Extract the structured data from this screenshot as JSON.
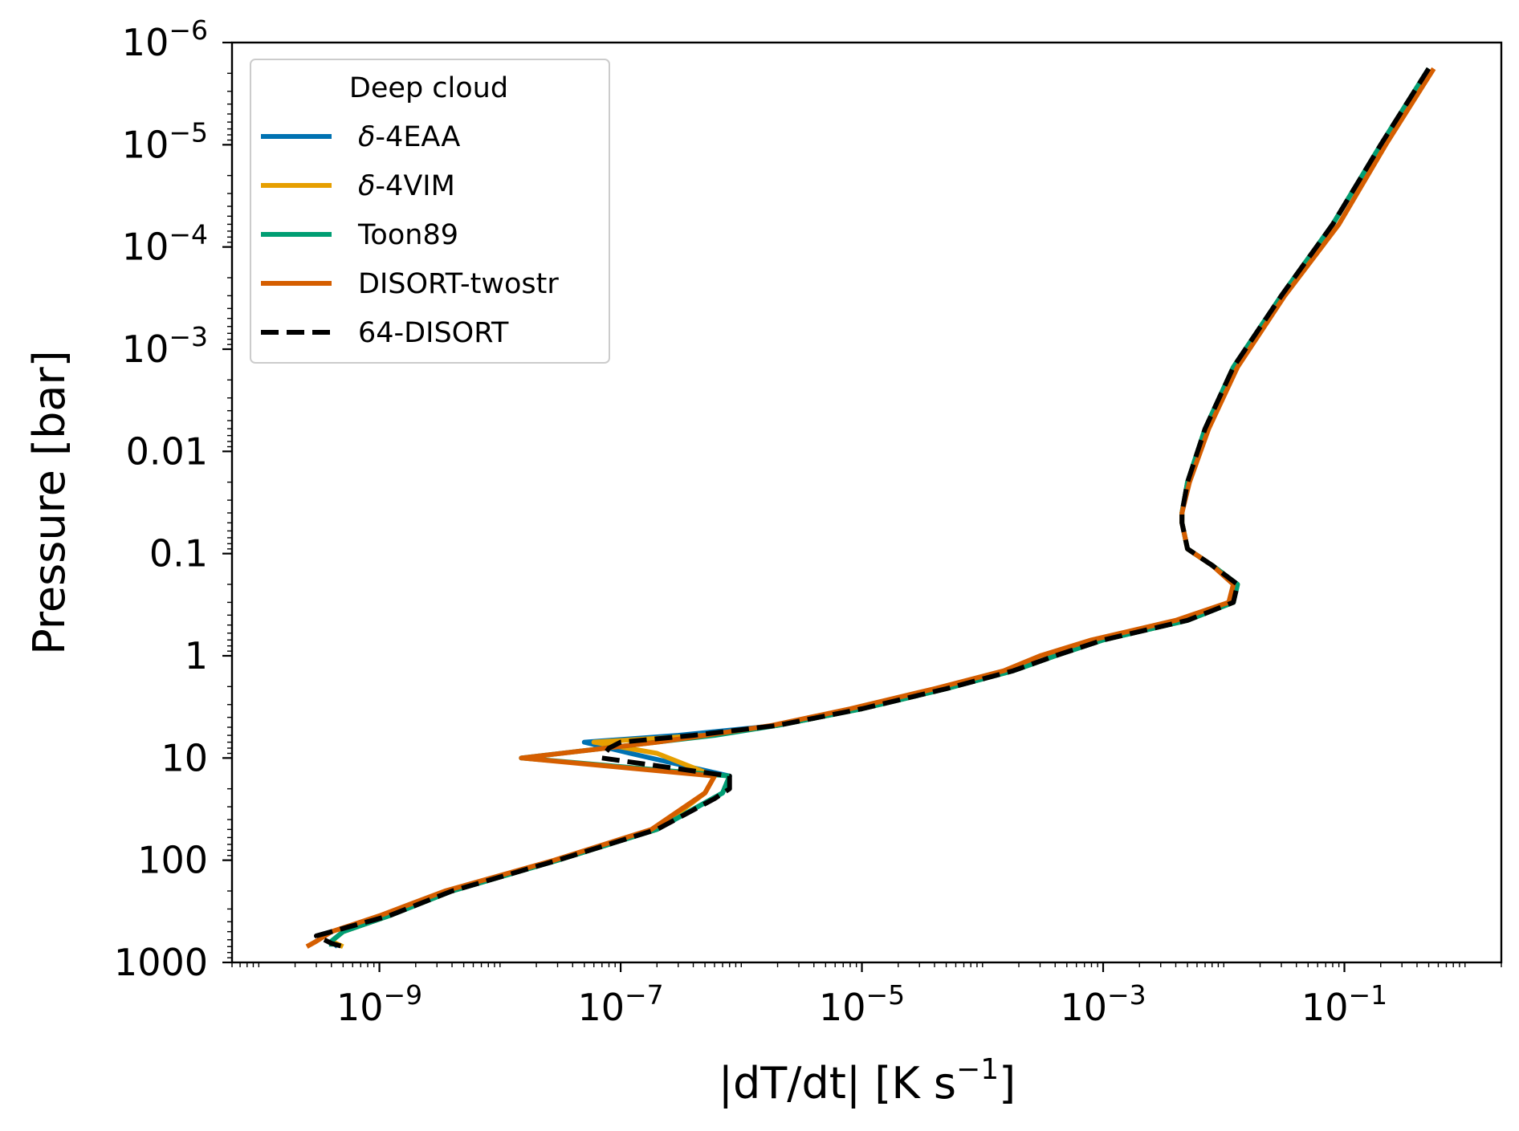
{
  "chart_data": {
    "type": "line",
    "xlabel": "|dT/dt| [K s",
    "xlabel_sup": "−1",
    "xlabel_suffix": "]",
    "ylabel": "Pressure [bar]",
    "x_scale": "log",
    "y_scale": "log",
    "y_inverted": true,
    "xlim": [
      6e-11,
      2
    ],
    "ylim": [
      1000,
      1e-06
    ],
    "x_ticks": [
      {
        "value": 1e-09,
        "base": "10",
        "exp": "−9"
      },
      {
        "value": 1e-07,
        "base": "10",
        "exp": "−7"
      },
      {
        "value": 1e-05,
        "base": "10",
        "exp": "−5"
      },
      {
        "value": 0.001,
        "base": "10",
        "exp": "−3"
      },
      {
        "value": 0.1,
        "base": "10",
        "exp": "−1"
      }
    ],
    "y_ticks": [
      {
        "value": 1e-06,
        "base": "10",
        "exp": "−6"
      },
      {
        "value": 1e-05,
        "base": "10",
        "exp": "−5"
      },
      {
        "value": 0.0001,
        "base": "10",
        "exp": "−4"
      },
      {
        "value": 0.001,
        "base": "10",
        "exp": "−3"
      },
      {
        "value": 0.01,
        "text": "0.01"
      },
      {
        "value": 0.1,
        "text": "0.1"
      },
      {
        "value": 1,
        "text": "1"
      },
      {
        "value": 10,
        "text": "10"
      },
      {
        "value": 100,
        "text": "100"
      },
      {
        "value": 1000,
        "text": "1000"
      }
    ],
    "legend": {
      "title": "Deep cloud",
      "position": "upper left"
    },
    "series": [
      {
        "name": "δ-4EAA",
        "name_prefix": "δ",
        "name_suffix": "-4EAA",
        "color": "#0072B2",
        "dashed": false,
        "points": [
          [
            0.5,
            1.8e-06
          ],
          [
            0.2,
            1e-05
          ],
          [
            0.08,
            6e-05
          ],
          [
            0.03,
            0.0003
          ],
          [
            0.012,
            0.0015
          ],
          [
            0.007,
            0.006
          ],
          [
            0.005,
            0.02
          ],
          [
            0.0045,
            0.04
          ],
          [
            0.0045,
            0.05
          ],
          [
            0.005,
            0.09
          ],
          [
            0.008,
            0.13
          ],
          [
            0.013,
            0.2
          ],
          [
            0.012,
            0.3
          ],
          [
            0.005,
            0.45
          ],
          [
            0.001,
            0.7
          ],
          [
            0.0004,
            1
          ],
          [
            0.00018,
            1.4
          ],
          [
            5e-05,
            2.1
          ],
          [
            1e-05,
            3.3
          ],
          [
            2e-06,
            4.8
          ],
          [
            3e-07,
            6
          ],
          [
            5e-08,
            7
          ],
          [
            1.2e-07,
            9
          ],
          [
            8e-07,
            15
          ],
          [
            7e-07,
            22
          ],
          [
            2e-07,
            50
          ],
          [
            3e-08,
            100
          ],
          [
            4e-09,
            200
          ],
          [
            1.2e-09,
            350
          ],
          [
            5e-10,
            500
          ],
          [
            4e-10,
            620
          ],
          [
            4.5e-10,
            700
          ]
        ]
      },
      {
        "name": "δ-4VIM",
        "name_prefix": "δ",
        "name_suffix": "-4VIM",
        "color": "#E69F00",
        "dashed": false,
        "points": [
          [
            0.5,
            1.8e-06
          ],
          [
            0.2,
            1e-05
          ],
          [
            0.08,
            6e-05
          ],
          [
            0.03,
            0.0003
          ],
          [
            0.012,
            0.0015
          ],
          [
            0.007,
            0.006
          ],
          [
            0.005,
            0.02
          ],
          [
            0.0045,
            0.04
          ],
          [
            0.0045,
            0.05
          ],
          [
            0.005,
            0.09
          ],
          [
            0.008,
            0.13
          ],
          [
            0.013,
            0.2
          ],
          [
            0.012,
            0.3
          ],
          [
            0.005,
            0.45
          ],
          [
            0.001,
            0.7
          ],
          [
            0.0004,
            1
          ],
          [
            0.00018,
            1.4
          ],
          [
            5e-05,
            2.1
          ],
          [
            1e-05,
            3.3
          ],
          [
            2e-06,
            4.8
          ],
          [
            5e-07,
            6
          ],
          [
            6e-08,
            7
          ],
          [
            2e-07,
            9
          ],
          [
            6e-07,
            15
          ],
          [
            5e-07,
            22
          ],
          [
            2e-07,
            50
          ],
          [
            3e-08,
            100
          ],
          [
            4e-09,
            200
          ],
          [
            1.2e-09,
            350
          ],
          [
            5e-10,
            500
          ],
          [
            4e-10,
            620
          ],
          [
            5e-10,
            700
          ]
        ]
      },
      {
        "name": "Toon89",
        "name_prefix": "",
        "name_suffix": "Toon89",
        "color": "#009E73",
        "dashed": false,
        "points": [
          [
            0.5,
            1.8e-06
          ],
          [
            0.2,
            1e-05
          ],
          [
            0.08,
            6e-05
          ],
          [
            0.03,
            0.0003
          ],
          [
            0.012,
            0.0015
          ],
          [
            0.007,
            0.006
          ],
          [
            0.005,
            0.02
          ],
          [
            0.0045,
            0.04
          ],
          [
            0.0045,
            0.05
          ],
          [
            0.005,
            0.09
          ],
          [
            0.008,
            0.13
          ],
          [
            0.013,
            0.2
          ],
          [
            0.012,
            0.3
          ],
          [
            0.005,
            0.45
          ],
          [
            0.001,
            0.7
          ],
          [
            0.0004,
            1
          ],
          [
            0.00018,
            1.4
          ],
          [
            5e-05,
            2.1
          ],
          [
            1e-05,
            3.3
          ],
          [
            2e-06,
            4.8
          ],
          [
            6e-07,
            6
          ],
          [
            1.5e-08,
            10
          ],
          [
            8e-07,
            15
          ],
          [
            7e-07,
            22
          ],
          [
            2e-07,
            50
          ],
          [
            3e-08,
            100
          ],
          [
            4e-09,
            200
          ],
          [
            1.2e-09,
            350
          ],
          [
            5e-10,
            500
          ],
          [
            4e-10,
            620
          ],
          [
            4e-10,
            700
          ]
        ]
      },
      {
        "name": "DISORT-twostr",
        "name_prefix": "",
        "name_suffix": "DISORT-twostr",
        "color": "#D55E00",
        "dashed": false,
        "points": [
          [
            0.55,
            1.8e-06
          ],
          [
            0.22,
            1e-05
          ],
          [
            0.09,
            6e-05
          ],
          [
            0.032,
            0.0003
          ],
          [
            0.013,
            0.0015
          ],
          [
            0.0075,
            0.006
          ],
          [
            0.0052,
            0.02
          ],
          [
            0.0045,
            0.04
          ],
          [
            0.0045,
            0.05
          ],
          [
            0.005,
            0.09
          ],
          [
            0.008,
            0.13
          ],
          [
            0.012,
            0.2
          ],
          [
            0.011,
            0.3
          ],
          [
            0.004,
            0.45
          ],
          [
            0.0008,
            0.7
          ],
          [
            0.0003,
            1
          ],
          [
            0.00015,
            1.4
          ],
          [
            4e-05,
            2.1
          ],
          [
            8e-06,
            3.3
          ],
          [
            1.8e-06,
            4.8
          ],
          [
            5e-07,
            6
          ],
          [
            2e-07,
            7
          ],
          [
            1.5e-08,
            10
          ],
          [
            6e-07,
            15
          ],
          [
            5e-07,
            22
          ],
          [
            1.8e-07,
            50
          ],
          [
            2.8e-08,
            100
          ],
          [
            3.5e-09,
            200
          ],
          [
            1e-09,
            350
          ],
          [
            4e-10,
            500
          ],
          [
            3e-10,
            620
          ],
          [
            2.5e-10,
            700
          ]
        ]
      },
      {
        "name": "64-DISORT",
        "name_prefix": "",
        "name_suffix": "64-DISORT",
        "color": "#000000",
        "dashed": true,
        "points": [
          [
            0.5,
            1.8e-06
          ],
          [
            0.2,
            1e-05
          ],
          [
            0.08,
            6e-05
          ],
          [
            0.03,
            0.0003
          ],
          [
            0.012,
            0.0015
          ],
          [
            0.007,
            0.006
          ],
          [
            0.005,
            0.02
          ],
          [
            0.0045,
            0.04
          ],
          [
            0.0045,
            0.05
          ],
          [
            0.005,
            0.09
          ],
          [
            0.008,
            0.13
          ],
          [
            0.013,
            0.2
          ],
          [
            0.012,
            0.3
          ],
          [
            0.005,
            0.45
          ],
          [
            0.001,
            0.7
          ],
          [
            0.0004,
            1
          ],
          [
            0.00018,
            1.4
          ],
          [
            5e-05,
            2.1
          ],
          [
            1e-05,
            3.3
          ],
          [
            2e-06,
            4.8
          ],
          [
            4e-07,
            6
          ],
          [
            1e-07,
            7
          ],
          [
            8e-08,
            8
          ],
          [
            7e-08,
            10
          ],
          [
            8e-07,
            15
          ],
          [
            8e-07,
            20
          ],
          [
            6e-07,
            25
          ],
          [
            2e-07,
            50
          ],
          [
            3e-08,
            100
          ],
          [
            4e-09,
            200
          ],
          [
            1.2e-09,
            350
          ],
          [
            4e-10,
            500
          ],
          [
            3e-10,
            550
          ],
          [
            3.5e-10,
            600
          ],
          [
            4e-10,
            650
          ],
          [
            5e-10,
            700
          ]
        ]
      }
    ]
  }
}
